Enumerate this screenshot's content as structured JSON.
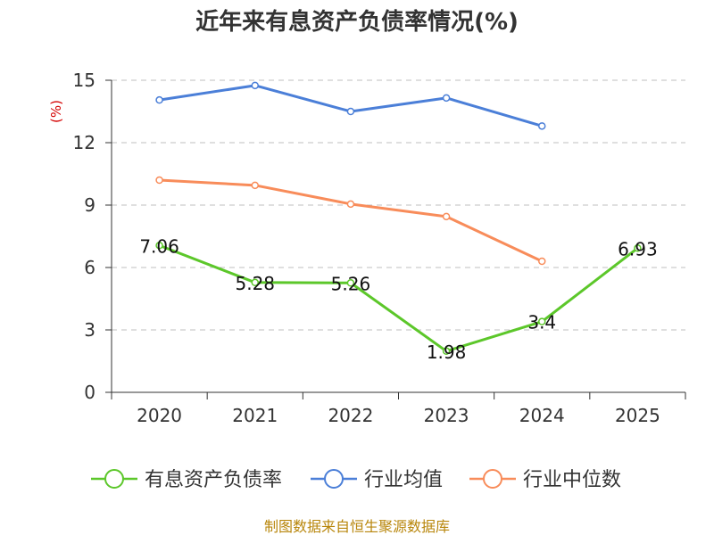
{
  "chart_data": {
    "type": "line",
    "title": "近年来有息资产负债率情况(%)",
    "ylabel": "(%)",
    "xlabel": "",
    "categories": [
      "2020",
      "2021",
      "2022",
      "2023",
      "2024",
      "2025"
    ],
    "ylim": [
      0,
      15
    ],
    "yticks": [
      0,
      3,
      6,
      9,
      12,
      15
    ],
    "grid": true,
    "legend_position": "bottom",
    "series": [
      {
        "name": "有息资产负债率",
        "color": "#5cc72a",
        "values": [
          7.06,
          5.28,
          5.26,
          1.98,
          3.4,
          6.93
        ],
        "labels": [
          "7.06",
          "5.28",
          "5.26",
          "1.98",
          "3.4",
          "6.93"
        ]
      },
      {
        "name": "行业均值",
        "color": "#4b7fd8",
        "values": [
          14.05,
          14.75,
          13.5,
          14.15,
          12.8,
          null
        ]
      },
      {
        "name": "行业中位数",
        "color": "#f88c5a",
        "values": [
          10.2,
          9.95,
          9.05,
          8.45,
          6.3,
          null
        ]
      }
    ]
  },
  "source": "制图数据来自恒生聚源数据库"
}
